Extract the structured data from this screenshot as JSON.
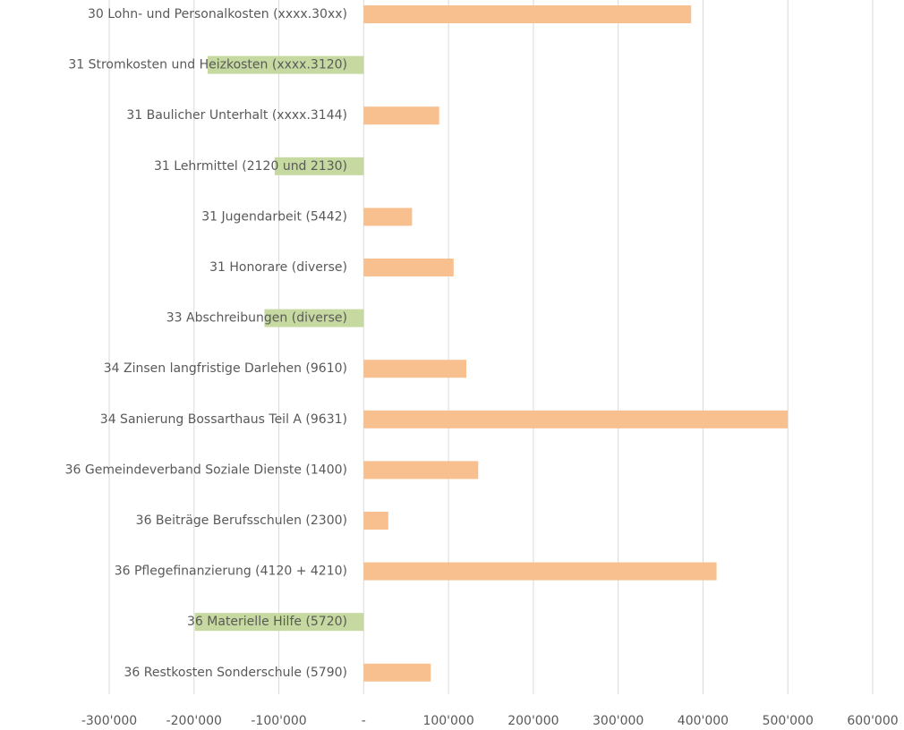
{
  "chart_data": {
    "type": "hbar",
    "categories": [
      "30 Lohn- und Personalkosten (xxxx.30xx)",
      "31 Stromkosten und Heizkosten  (xxxx.3120)",
      "31 Baulicher Unterhalt (xxxx.3144)",
      "31 Lehrmittel (2120 und 2130)",
      "31 Jugendarbeit (5442)",
      "31 Honorare (diverse)",
      "33 Abschreibungen (diverse)",
      "34 Zinsen langfristige Darlehen (9610)",
      "34 Sanierung Bossarthaus Teil A (9631)",
      "36 Gemeindeverband Soziale Dienste (1400)",
      "36 Beiträge Berufsschulen (2300)",
      "36 Pflegefinanzierung (4120 + 4210)",
      "36 Materielle Hilfe (5720)",
      "36 Restkosten Sonderschule (5790)"
    ],
    "values": [
      386000,
      -184000,
      89000,
      -105000,
      57000,
      106000,
      -117000,
      121000,
      500000,
      135000,
      29000,
      416000,
      -199000,
      79000
    ],
    "positive_color": "#f8c08f",
    "negative_color": "#c5d9a0",
    "xlim": [
      -300000,
      600000
    ],
    "xticks": [
      {
        "value": -300000,
        "label": "-300'000"
      },
      {
        "value": -200000,
        "label": "-200'000"
      },
      {
        "value": -100000,
        "label": "-100'000"
      },
      {
        "value": 0,
        "label": "-"
      },
      {
        "value": 100000,
        "label": "100'000"
      },
      {
        "value": 200000,
        "label": "200'000"
      },
      {
        "value": 300000,
        "label": "300'000"
      },
      {
        "value": 400000,
        "label": "400'000"
      },
      {
        "value": 500000,
        "label": "500'000"
      },
      {
        "value": 600000,
        "label": "600'000"
      }
    ],
    "grid": true
  }
}
